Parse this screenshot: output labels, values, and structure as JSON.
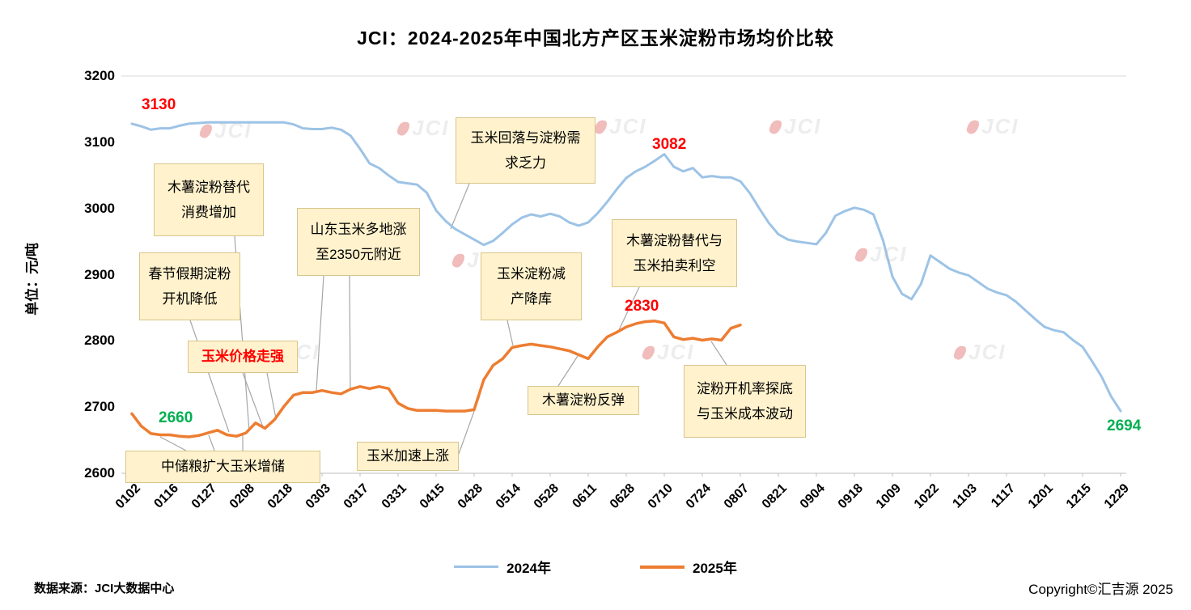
{
  "watermark": {
    "text": "JCI"
  },
  "footer": {
    "source": "数据来源：JCI大数据中心",
    "copyright": "Copyright©汇吉源 2025"
  },
  "colors": {
    "line_2024": "#9DC3E6",
    "line_2025": "#ED7D31",
    "label_red": "#FF0000",
    "label_green": "#00B050",
    "annotation_bg": "#FFF2CC",
    "watermark_red": "#CC1111"
  },
  "chart_data": {
    "type": "line",
    "title": "JCI：2024-2025年中国北方产区玉米淀粉市场均价比较",
    "ylabel": "单位：元/吨",
    "ylim": [
      2600,
      3200
    ],
    "grid": "off",
    "legend_position": "bottom",
    "y_ticks": [
      3200,
      3100,
      3000,
      2900,
      2800,
      2700,
      2600
    ],
    "x_ticks": [
      "0102",
      "0116",
      "0127",
      "0208",
      "0218",
      "0303",
      "0317",
      "0331",
      "0415",
      "0428",
      "0514",
      "0528",
      "0611",
      "0628",
      "0710",
      "0724",
      "0807",
      "0821",
      "0904",
      "0918",
      "1009",
      "1022",
      "1103",
      "1117",
      "1201",
      "1215",
      "1229"
    ],
    "series": [
      {
        "id": "s2024",
        "name": "2024年",
        "color": "#9DC3E6",
        "width": 3,
        "x_start": 0,
        "x_step": 0.25,
        "values": [
          3128,
          3124,
          3119,
          3121,
          3121,
          3125,
          3128,
          3129,
          3130,
          3130,
          3130,
          3130,
          3130,
          3130,
          3130,
          3130,
          3130,
          3127,
          3121,
          3120,
          3120,
          3122,
          3119,
          3110,
          3090,
          3068,
          3061,
          3050,
          3040,
          3038,
          3036,
          3024,
          2997,
          2981,
          2969,
          2961,
          2953,
          2945,
          2951,
          2963,
          2976,
          2986,
          2991,
          2988,
          2992,
          2988,
          2979,
          2974,
          2979,
          2993,
          3010,
          3029,
          3046,
          3056,
          3063,
          3072,
          3082,
          3063,
          3056,
          3061,
          3047,
          3049,
          3047,
          3047,
          3041,
          3023,
          3000,
          2978,
          2961,
          2953,
          2950,
          2948,
          2946,
          2963,
          2989,
          2996,
          3001,
          2998,
          2991,
          2952,
          2897,
          2871,
          2863,
          2886,
          2929,
          2919,
          2909,
          2903,
          2899,
          2889,
          2879,
          2873,
          2869,
          2859,
          2846,
          2833,
          2821,
          2816,
          2813,
          2801,
          2791,
          2769,
          2746,
          2716,
          2694
        ]
      },
      {
        "id": "s2025",
        "name": "2025年",
        "color": "#ED7D31",
        "width": 3.5,
        "x_start": 0,
        "x_step": 0.25,
        "values": [
          2690,
          2671,
          2660,
          2658,
          2658,
          2656,
          2655,
          2657,
          2661,
          2665,
          2658,
          2656,
          2661,
          2676,
          2668,
          2681,
          2701,
          2718,
          2722,
          2722,
          2725,
          2722,
          2720,
          2727,
          2731,
          2728,
          2731,
          2728,
          2706,
          2698,
          2695,
          2695,
          2695,
          2694,
          2694,
          2694,
          2696,
          2741,
          2763,
          2773,
          2790,
          2793,
          2795,
          2793,
          2791,
          2788,
          2785,
          2779,
          2773,
          2791,
          2806,
          2813,
          2821,
          2826,
          2829,
          2830,
          2827,
          2806,
          2802,
          2804,
          2801,
          2803,
          2801,
          2819,
          2824
        ]
      }
    ],
    "point_labels": [
      {
        "text": "3130",
        "series": "2024年",
        "color": "#FF0000"
      },
      {
        "text": "3082",
        "series": "2024年",
        "color": "#FF0000"
      },
      {
        "text": "2830",
        "series": "2025年",
        "color": "#FF0000"
      },
      {
        "text": "2660",
        "series": "2025年",
        "color": "#00B050"
      },
      {
        "text": "2694",
        "series": "2024年",
        "color": "#00B050"
      }
    ],
    "annotations": [
      {
        "text": "木薯淀粉替代\n消费增加"
      },
      {
        "text": "春节假期淀粉\n开机降低"
      },
      {
        "text": "玉米价格走强"
      },
      {
        "text": "山东玉米多地涨\n至2350元附近"
      },
      {
        "text": "玉米回落与淀粉需\n求乏力"
      },
      {
        "text": "玉米淀粉减\n产降库"
      },
      {
        "text": "木薯淀粉替代与\n玉米拍卖利空"
      },
      {
        "text": "中储粮扩大玉米增储"
      },
      {
        "text": "玉米加速上涨"
      },
      {
        "text": "木薯淀粉反弹"
      },
      {
        "text": "淀粉开机率探底\n与玉米成本波动"
      }
    ],
    "legend": [
      "2024年",
      "2025年"
    ]
  }
}
